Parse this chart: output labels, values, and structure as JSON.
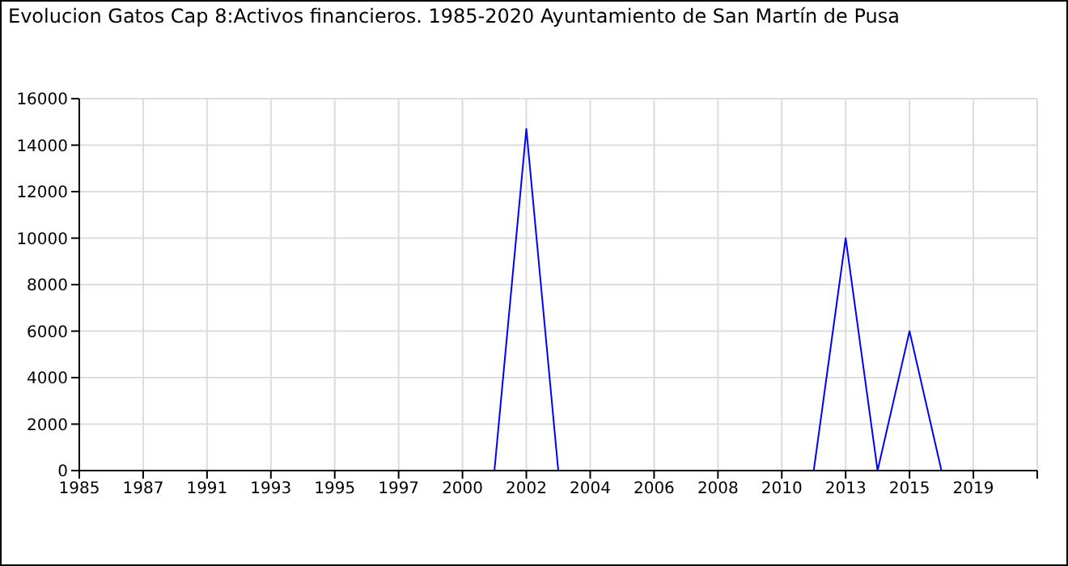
{
  "chart_data": {
    "type": "line",
    "title": "Evolucion Gatos Cap 8:Activos financieros. 1985-2020 Ayuntamiento de San Martín de Pusa",
    "categories": [
      "1985",
      null,
      "1987",
      null,
      "1991",
      null,
      "1993",
      null,
      "1995",
      null,
      "1997",
      null,
      "2000",
      null,
      "2002",
      null,
      "2004",
      null,
      "2006",
      null,
      "2008",
      null,
      "2010",
      null,
      "2013",
      null,
      "2015",
      null,
      "2019",
      null,
      null
    ],
    "series": [
      {
        "color": "#0000ff",
        "values": [
          null,
          null,
          null,
          null,
          null,
          null,
          null,
          null,
          null,
          null,
          null,
          null,
          null,
          0,
          14700,
          0,
          null,
          null,
          null,
          null,
          null,
          null,
          null,
          0,
          10000,
          0,
          6000,
          0,
          null,
          null,
          null
        ]
      }
    ],
    "ylim": [
      0,
      16000
    ],
    "yticks": [
      0,
      2000,
      4000,
      6000,
      8000,
      10000,
      12000,
      14000,
      16000
    ],
    "grid": true,
    "legend": false,
    "marker": "none",
    "line_style": "solid"
  }
}
